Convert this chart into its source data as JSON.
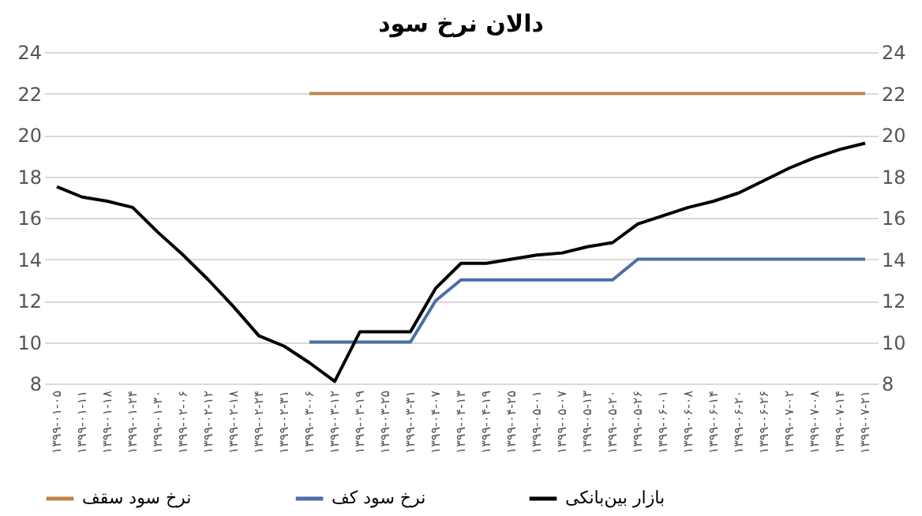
{
  "chart_data": {
    "type": "line",
    "title": "دالان نرخ سود",
    "categories": [
      "۱۳۹۹-۰۱-۰۵",
      "۱۳۹۹-۰۱-۱۱",
      "۱۳۹۹-۰۱-۱۸",
      "۱۳۹۹-۰۱-۲۴",
      "۱۳۹۹-۰۱-۳۰",
      "۱۳۹۹-۰۲-۰۶",
      "۱۳۹۹-۰۲-۱۲",
      "۱۳۹۹-۰۲-۱۸",
      "۱۳۹۹-۰۲-۲۴",
      "۱۳۹۹-۰۲-۳۱",
      "۱۳۹۹-۰۳-۰۶",
      "۱۳۹۹-۰۳-۱۲",
      "۱۳۹۹-۰۳-۱۹",
      "۱۳۹۹-۰۳-۲۵",
      "۱۳۹۹-۰۳-۳۱",
      "۱۳۹۹-۰۴-۰۷",
      "۱۳۹۹-۰۴-۱۳",
      "۱۳۹۹-۰۴-۱۹",
      "۱۳۹۹-۰۴-۲۵",
      "۱۳۹۹-۰۵-۰۱",
      "۱۳۹۹-۰۵-۰۷",
      "۱۳۹۹-۰۵-۱۳",
      "۱۳۹۹-۰۵-۲۰",
      "۱۳۹۹-۰۵-۲۶",
      "۱۳۹۹-۰۶-۰۱",
      "۱۳۹۹-۰۶-۰۸",
      "۱۳۹۹-۰۶-۱۴",
      "۱۳۹۹-۰۶-۲۰",
      "۱۳۹۹-۰۶-۲۶",
      "۱۳۹۹-۰۷-۰۲",
      "۱۳۹۹-۰۷-۰۸",
      "۱۳۹۹-۰۷-۱۴",
      "۱۳۹۹-۰۷-۲۱"
    ],
    "series": [
      {
        "name": "نرخ سود سقف",
        "color": "#c0844a",
        "values": [
          null,
          null,
          null,
          null,
          null,
          null,
          null,
          null,
          null,
          null,
          22,
          22,
          22,
          22,
          22,
          22,
          22,
          22,
          22,
          22,
          22,
          22,
          22,
          22,
          22,
          22,
          22,
          22,
          22,
          22,
          22,
          22,
          22
        ]
      },
      {
        "name": "نرخ سود کف",
        "color": "#4a6fa5",
        "values": [
          null,
          null,
          null,
          null,
          null,
          null,
          null,
          null,
          null,
          null,
          10,
          10,
          10,
          10,
          10,
          12,
          13,
          13,
          13,
          13,
          13,
          13,
          13,
          14,
          14,
          14,
          14,
          14,
          14,
          14,
          14,
          14,
          14
        ]
      },
      {
        "name": "بازار بین‌بانکی",
        "color": "#000000",
        "values": [
          17.5,
          17.0,
          16.8,
          16.5,
          15.3,
          14.2,
          13.0,
          11.7,
          10.3,
          9.8,
          9.0,
          8.1,
          10.5,
          10.5,
          10.5,
          12.6,
          13.8,
          13.8,
          14.0,
          14.2,
          14.3,
          14.6,
          14.8,
          15.7,
          16.1,
          16.5,
          16.8,
          17.2,
          17.8,
          18.4,
          18.9,
          19.3,
          19.6
        ]
      }
    ],
    "ylim": [
      8,
      24
    ],
    "yticks": [
      8,
      10,
      12,
      14,
      16,
      18,
      20,
      22,
      24
    ],
    "y2lim": [
      8,
      24
    ],
    "y2ticks": [
      8,
      10,
      12,
      14,
      16,
      18,
      20,
      22,
      24
    ],
    "grid": "y",
    "legend": "bottom",
    "line_style": "solid"
  }
}
